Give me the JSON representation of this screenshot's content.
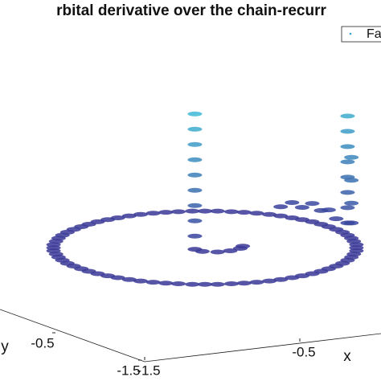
{
  "chart_data": {
    "type": "scatter3d",
    "title": "rbital derivative over the chain-recurr",
    "xlabel": "x",
    "ylabel": "y",
    "xlim": [
      -1.5,
      1.5
    ],
    "ylim": [
      -1.5,
      1.5
    ],
    "zlim": [
      0,
      1
    ],
    "xticks": [
      -1.5,
      -0.5
    ],
    "yticks": [
      -1.5,
      -0.5
    ],
    "legend": "top-right",
    "series": [
      {
        "name": "Fa",
        "color_low": "#3a3596",
        "color_high": "#3ec8dc",
        "x": [
          1.2,
          1.2,
          1.18,
          1.16,
          1.13,
          1.09,
          1.04,
          0.98,
          0.92,
          0.85,
          0.77,
          0.69,
          0.6,
          0.51,
          0.41,
          0.31,
          0.21,
          0.1,
          0,
          -0.1,
          -0.21,
          -0.31,
          -0.41,
          -0.51,
          -0.6,
          -0.69,
          -0.77,
          -0.85,
          -0.92,
          -0.98,
          -1.04,
          -1.09,
          -1.13,
          -1.16,
          -1.18,
          -1.2,
          -1.2,
          -1.2,
          -1.18,
          -1.16,
          -1.13,
          -1.09,
          -1.04,
          -0.98,
          -0.92,
          -0.85,
          -0.77,
          -0.69,
          -0.6,
          -0.51,
          -0.41,
          -0.31,
          -0.21,
          -0.1,
          0,
          0.1,
          0.21,
          0.31,
          0.41,
          0.51,
          0.6,
          0.69,
          0.77,
          0.85,
          0.92,
          0.98,
          1.04,
          1.09,
          1.13,
          1.16,
          1.18,
          1.2,
          1.13,
          1.13,
          1.13,
          1.13,
          1.13,
          1.13,
          1.13,
          1.13,
          1.16,
          1.16,
          1.16,
          1.16,
          -0.08,
          -0.08,
          -0.08,
          -0.08,
          -0.08,
          -0.08,
          -0.08,
          -0.08,
          -0.08,
          0.6,
          0.69,
          0.77,
          0.85,
          0.92,
          0.98,
          1.04,
          -0.08,
          -0.02,
          0.1,
          0.2,
          0.28,
          0.3
        ],
        "y": [
          0,
          0.1,
          0.21,
          0.31,
          0.41,
          0.51,
          0.6,
          0.69,
          0.77,
          0.85,
          0.92,
          0.98,
          1.04,
          1.09,
          1.13,
          1.16,
          1.18,
          1.2,
          1.2,
          1.2,
          1.18,
          1.16,
          1.13,
          1.09,
          1.04,
          0.98,
          0.92,
          0.85,
          0.77,
          0.69,
          0.6,
          0.51,
          0.41,
          0.31,
          0.21,
          0.1,
          0,
          -0.1,
          -0.21,
          -0.31,
          -0.41,
          -0.51,
          -0.6,
          -0.69,
          -0.77,
          -0.85,
          -0.92,
          -0.98,
          -1.04,
          -1.09,
          -1.13,
          -1.16,
          -1.18,
          -1.2,
          -1.2,
          -1.2,
          -1.18,
          -1.16,
          -1.13,
          -1.09,
          -1.04,
          -0.98,
          -0.92,
          -0.85,
          -0.77,
          -0.69,
          -0.6,
          -0.51,
          -0.41,
          -0.31,
          -0.21,
          -0.1,
          -0.41,
          -0.41,
          -0.41,
          -0.41,
          -0.41,
          -0.41,
          -0.41,
          -0.41,
          -0.31,
          -0.31,
          -0.31,
          -0.31,
          0.02,
          0.02,
          0.02,
          0.02,
          0.02,
          0.02,
          0.02,
          0.02,
          0.02,
          -1.04,
          -0.98,
          -0.92,
          -0.85,
          -0.77,
          -0.69,
          -0.6,
          0.05,
          0.12,
          0.14,
          0.1,
          0.02,
          -0.05
        ],
        "z": [
          0.02,
          0.02,
          0.02,
          0.02,
          0.02,
          0.02,
          0.02,
          0.02,
          0.02,
          0.02,
          0.02,
          0.02,
          0.02,
          0.02,
          0.02,
          0.02,
          0.02,
          0.02,
          0.02,
          0.02,
          0.02,
          0.02,
          0.02,
          0.02,
          0.02,
          0.02,
          0.02,
          0.02,
          0.02,
          0.02,
          0.02,
          0.02,
          0.02,
          0.02,
          0.02,
          0.02,
          0.02,
          0.02,
          0.02,
          0.02,
          0.02,
          0.02,
          0.02,
          0.02,
          0.02,
          0.02,
          0.02,
          0.02,
          0.02,
          0.02,
          0.02,
          0.02,
          0.02,
          0.02,
          0.02,
          0.02,
          0.02,
          0.02,
          0.02,
          0.02,
          0.02,
          0.02,
          0.02,
          0.02,
          0.02,
          0.02,
          0.02,
          0.02,
          0.02,
          0.02,
          0.02,
          0.02,
          0.1,
          0.2,
          0.3,
          0.4,
          0.5,
          0.6,
          0.7,
          0.8,
          0.12,
          0.25,
          0.4,
          0.55,
          0.1,
          0.2,
          0.3,
          0.4,
          0.5,
          0.6,
          0.7,
          0.8,
          0.9,
          0.08,
          0.12,
          0.1,
          0.14,
          0.11,
          0.13,
          0.09,
          0.02,
          0.02,
          0.02,
          0.02,
          0.02,
          0.02
        ]
      }
    ]
  }
}
